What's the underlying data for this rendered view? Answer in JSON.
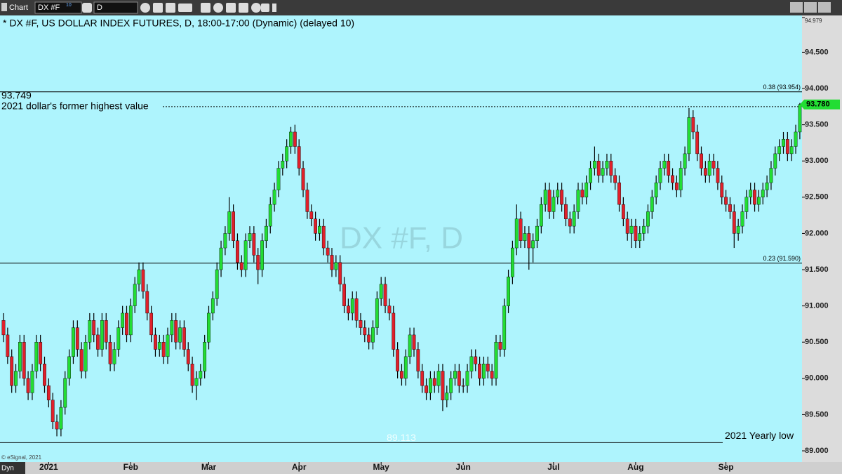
{
  "toolbar": {
    "app": "Chart",
    "symbol": "DX #F",
    "symbol_badge": "10",
    "interval": "D"
  },
  "footer": {
    "copyright": "© eSignal, 2021",
    "mode": "Dyn"
  },
  "chart_data": {
    "type": "candlestick",
    "title": "* DX #F, US DOLLAR INDEX FUTURES, D, 18:00-17:00 (Dynamic) (delayed 10)",
    "watermark": "DX #F, D",
    "up_color": "#22dd33",
    "down_color": "#e0202a",
    "ylim": [
      88.85,
      94.979
    ],
    "yticks": [
      {
        "value": 89,
        "label": "89.000"
      },
      {
        "value": 89.5,
        "label": "89.500"
      },
      {
        "value": 90,
        "label": "90.000"
      },
      {
        "value": 90.5,
        "label": "90.500"
      },
      {
        "value": 91,
        "label": "91.000"
      },
      {
        "value": 91.5,
        "label": "91.500"
      },
      {
        "value": 92,
        "label": "92.000"
      },
      {
        "value": 92.5,
        "label": "92.500"
      },
      {
        "value": 93,
        "label": "93.000"
      },
      {
        "value": 93.5,
        "label": "93.500"
      },
      {
        "value": 94,
        "label": "94.000"
      },
      {
        "value": 94.5,
        "label": "94.500"
      },
      {
        "value": 94.979,
        "label": "94.979"
      }
    ],
    "reference_lines": [
      {
        "value": 93.954,
        "label": "0.38 (93.954)"
      },
      {
        "value": 91.59,
        "label": "0.23 (91.590)"
      }
    ],
    "highlights": [
      {
        "value": 93.749,
        "value_label": "93.749",
        "text": "2021 dollar's former highest value"
      },
      {
        "value": 89.113,
        "value_label": "89.113",
        "text": "2021 Yearly low"
      }
    ],
    "last_price": {
      "value": 93.78,
      "label": "93.780"
    },
    "categories": [
      null,
      null,
      null,
      null,
      null,
      null,
      null,
      null,
      null,
      null,
      null,
      "2021",
      null,
      null,
      null,
      null,
      null,
      null,
      null,
      null,
      null,
      null,
      null,
      null,
      null,
      null,
      null,
      null,
      null,
      null,
      null,
      "Feb",
      null,
      null,
      null,
      null,
      null,
      null,
      null,
      null,
      null,
      null,
      null,
      null,
      null,
      null,
      null,
      null,
      null,
      null,
      "Mar",
      null,
      null,
      null,
      null,
      null,
      null,
      null,
      null,
      null,
      null,
      null,
      null,
      null,
      null,
      null,
      null,
      null,
      null,
      null,
      null,
      null,
      "Apr",
      null,
      null,
      null,
      null,
      null,
      null,
      null,
      null,
      null,
      null,
      null,
      null,
      null,
      null,
      null,
      null,
      null,
      null,
      null,
      "May",
      null,
      null,
      null,
      null,
      null,
      null,
      null,
      null,
      null,
      null,
      null,
      null,
      null,
      null,
      null,
      null,
      null,
      null,
      null,
      "Jun",
      null,
      null,
      null,
      null,
      null,
      null,
      null,
      null,
      null,
      null,
      null,
      null,
      null,
      null,
      null,
      null,
      null,
      null,
      null,
      null,
      null,
      "Jul",
      null,
      null,
      null,
      null,
      null,
      null,
      null,
      null,
      null,
      null,
      null,
      null,
      null,
      null,
      null,
      null,
      null,
      null,
      null,
      "Aug",
      null,
      null,
      null,
      null,
      null,
      null,
      null,
      null,
      null,
      null,
      null,
      null,
      null,
      null,
      null,
      null,
      null,
      null,
      null,
      null,
      null,
      "Sep",
      null,
      null,
      null,
      null,
      null,
      null,
      null,
      null,
      null,
      null,
      null,
      null,
      null,
      null,
      null,
      null,
      null,
      null
    ],
    "open": [
      90.8,
      90.6,
      90.3,
      89.9,
      90.1,
      90.5,
      90.0,
      89.8,
      90.1,
      90.5,
      90.2,
      89.9,
      89.7,
      89.4,
      89.3,
      89.6,
      90.0,
      90.3,
      90.7,
      90.4,
      90.1,
      90.5,
      90.8,
      90.6,
      90.4,
      90.8,
      90.5,
      90.2,
      90.4,
      90.7,
      90.9,
      90.6,
      91.0,
      91.3,
      91.5,
      91.2,
      90.9,
      90.6,
      90.4,
      90.5,
      90.3,
      90.6,
      90.8,
      90.5,
      90.7,
      90.4,
      90.2,
      89.9,
      90.0,
      90.1,
      90.5,
      90.9,
      91.1,
      91.5,
      91.8,
      92.0,
      92.3,
      91.9,
      91.6,
      91.5,
      91.9,
      92.0,
      91.7,
      91.5,
      91.9,
      92.1,
      92.4,
      92.6,
      92.9,
      93.0,
      93.2,
      93.4,
      93.2,
      92.9,
      92.6,
      92.3,
      92.2,
      92.0,
      92.1,
      91.8,
      91.7,
      91.5,
      91.6,
      91.3,
      91.0,
      90.9,
      91.1,
      90.8,
      90.7,
      90.6,
      90.5,
      90.7,
      91.1,
      91.3,
      91.0,
      90.9,
      90.4,
      90.1,
      90.0,
      90.3,
      90.6,
      90.4,
      90.1,
      89.9,
      89.8,
      90.0,
      89.9,
      90.1,
      89.7,
      89.8,
      90.0,
      90.1,
      89.9,
      89.9,
      90.1,
      90.3,
      90.2,
      90.0,
      90.2,
      90.1,
      90.0,
      90.5,
      90.4,
      91.0,
      91.4,
      91.8,
      92.2,
      91.9,
      92.0,
      91.8,
      91.9,
      92.1,
      92.4,
      92.6,
      92.3,
      92.5,
      92.6,
      92.4,
      92.2,
      92.1,
      92.3,
      92.6,
      92.5,
      92.7,
      92.9,
      93.0,
      92.8,
      92.9,
      93.0,
      92.8,
      92.7,
      92.4,
      92.2,
      92.0,
      92.1,
      91.9,
      92.0,
      92.1,
      92.3,
      92.5,
      92.7,
      92.9,
      93.0,
      92.8,
      92.7,
      92.6,
      92.9,
      93.1,
      93.6,
      93.4,
      93.1,
      92.9,
      92.8,
      93.0,
      92.9,
      92.7,
      92.5,
      92.4,
      92.3,
      92.0,
      92.1,
      92.3,
      92.5,
      92.6,
      92.4,
      92.5,
      92.6,
      92.7,
      92.9,
      93.1,
      93.2,
      93.3,
      93.1,
      93.2,
      93.4
    ],
    "high": [
      90.9,
      90.7,
      90.4,
      90.2,
      90.6,
      90.6,
      90.1,
      90.2,
      90.6,
      90.6,
      90.3,
      90.0,
      89.8,
      89.5,
      89.7,
      90.1,
      90.4,
      90.8,
      90.8,
      90.5,
      90.6,
      90.9,
      90.9,
      90.7,
      90.9,
      90.9,
      90.6,
      90.5,
      90.8,
      91.0,
      91.0,
      91.1,
      91.4,
      91.6,
      91.6,
      91.3,
      91.0,
      90.7,
      90.6,
      90.6,
      90.7,
      90.9,
      90.9,
      90.8,
      90.8,
      90.5,
      90.3,
      90.1,
      90.2,
      90.6,
      91.0,
      91.2,
      91.6,
      91.9,
      92.1,
      92.5,
      92.4,
      92.0,
      91.7,
      92.0,
      92.1,
      92.1,
      91.8,
      92.0,
      92.2,
      92.5,
      92.7,
      93.0,
      93.1,
      93.3,
      93.47,
      93.5,
      93.3,
      93.0,
      92.7,
      92.4,
      92.3,
      92.2,
      92.2,
      91.9,
      91.8,
      91.7,
      91.7,
      91.4,
      91.1,
      91.2,
      91.2,
      90.9,
      90.8,
      90.7,
      90.8,
      91.2,
      91.4,
      91.4,
      91.1,
      91.0,
      90.5,
      90.2,
      90.4,
      90.7,
      90.7,
      90.5,
      90.2,
      90.0,
      90.1,
      90.1,
      90.2,
      90.2,
      89.9,
      90.1,
      90.2,
      90.2,
      90.0,
      90.2,
      90.4,
      90.4,
      90.3,
      90.3,
      90.3,
      90.2,
      90.6,
      90.6,
      91.1,
      91.5,
      91.9,
      92.4,
      92.3,
      92.1,
      92.1,
      92.0,
      92.2,
      92.5,
      92.7,
      92.7,
      92.6,
      92.7,
      92.7,
      92.5,
      92.3,
      92.4,
      92.7,
      92.7,
      92.8,
      93.0,
      93.2,
      93.1,
      93.0,
      93.1,
      93.1,
      92.9,
      92.8,
      92.5,
      92.3,
      92.2,
      92.2,
      92.1,
      92.2,
      92.4,
      92.6,
      92.8,
      93.0,
      93.1,
      93.1,
      92.9,
      92.8,
      93.0,
      93.2,
      93.73,
      93.7,
      93.5,
      93.2,
      93.0,
      93.1,
      93.1,
      93.0,
      92.8,
      92.6,
      92.5,
      92.4,
      92.2,
      92.4,
      92.6,
      92.7,
      92.7,
      92.6,
      92.7,
      92.8,
      93.0,
      93.2,
      93.3,
      93.4,
      93.4,
      93.3,
      93.5,
      93.8
    ],
    "low": [
      90.5,
      90.2,
      89.8,
      89.8,
      90.0,
      89.9,
      89.7,
      89.7,
      90.0,
      90.1,
      89.8,
      89.6,
      89.3,
      89.2,
      89.2,
      89.5,
      89.9,
      90.2,
      90.3,
      90.0,
      90.0,
      90.4,
      90.5,
      90.3,
      90.3,
      90.4,
      90.1,
      90.1,
      90.3,
      90.6,
      90.5,
      90.5,
      90.9,
      91.2,
      91.1,
      90.8,
      90.5,
      90.3,
      90.3,
      90.2,
      90.2,
      90.5,
      90.4,
      90.4,
      90.3,
      90.1,
      89.8,
      89.7,
      89.9,
      90.0,
      90.4,
      90.8,
      91.0,
      91.4,
      91.7,
      91.9,
      91.8,
      91.5,
      91.4,
      91.4,
      91.8,
      91.6,
      91.3,
      91.4,
      91.8,
      92.0,
      92.3,
      92.5,
      92.8,
      92.9,
      93.1,
      93.1,
      92.8,
      92.5,
      92.2,
      92.1,
      91.9,
      91.9,
      91.7,
      91.6,
      91.4,
      91.4,
      91.2,
      90.9,
      90.8,
      90.8,
      90.7,
      90.6,
      90.5,
      90.4,
      90.4,
      90.6,
      91.0,
      90.9,
      90.8,
      90.3,
      90.0,
      89.9,
      89.9,
      90.2,
      90.3,
      90.0,
      89.8,
      89.7,
      89.7,
      89.8,
      89.8,
      89.55,
      89.6,
      89.7,
      89.9,
      89.8,
      89.8,
      89.8,
      90.0,
      90.1,
      89.9,
      89.9,
      90.0,
      89.9,
      89.9,
      90.3,
      90.3,
      90.9,
      91.3,
      91.7,
      91.8,
      91.8,
      91.5,
      91.6,
      91.8,
      92.0,
      92.3,
      92.2,
      92.2,
      92.4,
      92.3,
      92.1,
      92.0,
      92.0,
      92.2,
      92.4,
      92.4,
      92.6,
      92.8,
      92.7,
      92.7,
      92.8,
      92.7,
      92.6,
      92.3,
      92.1,
      91.9,
      91.8,
      91.8,
      91.8,
      91.9,
      92.0,
      92.2,
      92.4,
      92.6,
      92.8,
      92.7,
      92.6,
      92.5,
      92.5,
      92.8,
      93.0,
      93.3,
      93.0,
      92.8,
      92.7,
      92.7,
      92.8,
      92.6,
      92.4,
      92.3,
      92.2,
      91.8,
      91.9,
      92.0,
      92.2,
      92.4,
      92.3,
      92.3,
      92.4,
      92.5,
      92.6,
      92.8,
      93.0,
      93.1,
      93.0,
      93.0,
      93.1,
      93.3
    ],
    "close": [
      90.6,
      90.3,
      89.9,
      90.1,
      90.5,
      90.0,
      89.8,
      90.1,
      90.5,
      90.2,
      89.9,
      89.7,
      89.4,
      89.3,
      89.6,
      90.0,
      90.3,
      90.7,
      90.4,
      90.1,
      90.5,
      90.8,
      90.6,
      90.4,
      90.8,
      90.5,
      90.2,
      90.4,
      90.7,
      90.9,
      90.6,
      91.0,
      91.3,
      91.5,
      91.2,
      90.9,
      90.6,
      90.4,
      90.5,
      90.3,
      90.6,
      90.8,
      90.5,
      90.7,
      90.4,
      90.2,
      89.9,
      90.0,
      90.1,
      90.5,
      90.9,
      91.1,
      91.5,
      91.8,
      92.0,
      92.3,
      91.9,
      91.6,
      91.5,
      91.9,
      92.0,
      91.7,
      91.5,
      91.9,
      92.1,
      92.4,
      92.6,
      92.9,
      93.0,
      93.2,
      93.4,
      93.2,
      92.9,
      92.6,
      92.3,
      92.2,
      92.0,
      92.1,
      91.8,
      91.7,
      91.5,
      91.6,
      91.3,
      91.0,
      90.9,
      91.1,
      90.8,
      90.7,
      90.6,
      90.5,
      90.7,
      91.1,
      91.3,
      91.0,
      90.9,
      90.4,
      90.1,
      90.0,
      90.3,
      90.6,
      90.4,
      90.1,
      89.9,
      89.8,
      90.0,
      89.9,
      90.1,
      89.7,
      89.8,
      90.0,
      90.1,
      89.9,
      89.9,
      90.1,
      90.3,
      90.2,
      90.0,
      90.2,
      90.1,
      90.0,
      90.5,
      90.4,
      91.0,
      91.4,
      91.8,
      92.2,
      91.9,
      92.0,
      91.8,
      91.9,
      92.1,
      92.4,
      92.6,
      92.3,
      92.5,
      92.6,
      92.4,
      92.2,
      92.1,
      92.3,
      92.6,
      92.5,
      92.7,
      92.9,
      93.0,
      92.8,
      92.9,
      93.0,
      92.8,
      92.7,
      92.4,
      92.2,
      92.0,
      92.1,
      91.9,
      92.0,
      92.1,
      92.3,
      92.5,
      92.7,
      92.9,
      93.0,
      92.8,
      92.7,
      92.6,
      92.9,
      93.1,
      93.6,
      93.4,
      93.1,
      92.9,
      92.8,
      93.0,
      92.9,
      92.7,
      92.5,
      92.4,
      92.3,
      92.0,
      92.1,
      92.3,
      92.5,
      92.6,
      92.4,
      92.5,
      92.6,
      92.7,
      92.9,
      93.1,
      93.2,
      93.3,
      93.1,
      93.2,
      93.4,
      93.78
    ]
  }
}
